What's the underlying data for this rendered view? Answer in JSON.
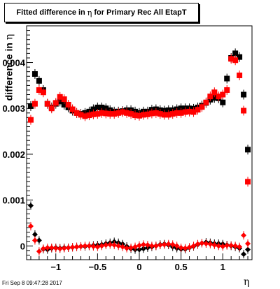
{
  "title": {
    "prefix": "Fitted difference in",
    "symbol": "η",
    "suffix": "for Primary Rec All EtapT"
  },
  "timestamp": "Fri Sep  8 09:47:28 2017",
  "colors": {
    "black": "#000000",
    "red": "#ff0000",
    "axis": "#000000"
  },
  "chart_data": {
    "type": "scatter",
    "title": "Fitted difference in η for Primary Rec All EtapT",
    "xlabel": "η",
    "ylabel": "difference in η",
    "xlim": [
      -1.35,
      1.35
    ],
    "ylim": [
      -0.0003,
      0.0048
    ],
    "x_ticks": [
      -1,
      -0.5,
      0,
      0.5,
      1
    ],
    "x_tick_labels": [
      "−1",
      "−0.5",
      "0",
      "0.5",
      "1"
    ],
    "y_ticks": [
      0,
      0.001,
      0.002,
      0.003,
      0.004
    ],
    "y_tick_labels": [
      "0",
      "0.001",
      "0.002",
      "0.003",
      "0.004"
    ],
    "grid": false,
    "series": [
      {
        "color": "#000000",
        "marker": "square",
        "x": [
          -1.3,
          -1.25,
          -1.2,
          -1.15,
          -1.1,
          -1.05,
          -1.0,
          -0.95,
          -0.9,
          -0.85,
          -0.8,
          -0.75,
          -0.7,
          -0.65,
          -0.6,
          -0.55,
          -0.5,
          -0.45,
          -0.4,
          -0.35,
          -0.3,
          -0.25,
          -0.2,
          -0.15,
          -0.1,
          -0.05,
          0.0,
          0.05,
          0.1,
          0.15,
          0.2,
          0.25,
          0.3,
          0.35,
          0.4,
          0.45,
          0.5,
          0.55,
          0.6,
          0.65,
          0.7,
          0.75,
          0.8,
          0.85,
          0.9,
          0.95,
          1.0,
          1.05,
          1.1,
          1.15,
          1.2,
          1.25,
          1.3
        ],
        "y": [
          0.00305,
          0.00375,
          0.0036,
          0.0034,
          0.0031,
          0.00302,
          0.0031,
          0.00315,
          0.00308,
          0.00302,
          0.00295,
          0.0029,
          0.00288,
          0.0029,
          0.00293,
          0.00298,
          0.00302,
          0.00302,
          0.003,
          0.00296,
          0.00293,
          0.00293,
          0.00294,
          0.00296,
          0.00296,
          0.00293,
          0.0029,
          0.00293,
          0.00293,
          0.00297,
          0.00298,
          0.00296,
          0.00295,
          0.00296,
          0.00296,
          0.00298,
          0.003,
          0.003,
          0.003,
          0.00299,
          0.00302,
          0.00306,
          0.00312,
          0.00319,
          0.00323,
          0.00322,
          0.00313,
          0.00365,
          0.0041,
          0.0042,
          0.00412,
          0.0033,
          0.0021
        ]
      },
      {
        "color": "#ff0000",
        "marker": "square",
        "x": [
          -1.3,
          -1.25,
          -1.2,
          -1.15,
          -1.1,
          -1.05,
          -1.0,
          -0.95,
          -0.9,
          -0.85,
          -0.8,
          -0.75,
          -0.7,
          -0.65,
          -0.6,
          -0.55,
          -0.5,
          -0.45,
          -0.4,
          -0.35,
          -0.3,
          -0.25,
          -0.2,
          -0.15,
          -0.1,
          -0.05,
          0.0,
          0.05,
          0.1,
          0.15,
          0.2,
          0.25,
          0.3,
          0.35,
          0.4,
          0.45,
          0.5,
          0.55,
          0.6,
          0.65,
          0.7,
          0.75,
          0.8,
          0.85,
          0.9,
          0.95,
          1.0,
          1.05,
          1.1,
          1.15,
          1.2,
          1.25,
          1.3
        ],
        "y": [
          0.00275,
          0.0031,
          0.0034,
          0.00335,
          0.0031,
          0.003,
          0.00312,
          0.00325,
          0.0032,
          0.00308,
          0.00298,
          0.0029,
          0.00286,
          0.00283,
          0.00285,
          0.00287,
          0.00288,
          0.0029,
          0.00289,
          0.00288,
          0.00288,
          0.0029,
          0.00292,
          0.0029,
          0.00288,
          0.00285,
          0.00284,
          0.00286,
          0.00287,
          0.00289,
          0.0029,
          0.00288,
          0.00286,
          0.00286,
          0.00288,
          0.0029,
          0.0029,
          0.00292,
          0.00293,
          0.00292,
          0.00297,
          0.00303,
          0.00313,
          0.00326,
          0.00335,
          0.00326,
          0.0033,
          0.0034,
          0.00408,
          0.00405,
          0.00372,
          0.00295,
          0.0014
        ]
      },
      {
        "color": "#000000",
        "marker": "diamond",
        "x": [
          -1.3,
          -1.25,
          -1.2,
          -1.15,
          -1.1,
          -1.05,
          -1.0,
          -0.95,
          -0.9,
          -0.85,
          -0.8,
          -0.75,
          -0.7,
          -0.65,
          -0.6,
          -0.55,
          -0.5,
          -0.45,
          -0.4,
          -0.35,
          -0.3,
          -0.25,
          -0.2,
          -0.15,
          -0.1,
          -0.05,
          0.0,
          0.05,
          0.1,
          0.15,
          0.2,
          0.25,
          0.3,
          0.35,
          0.4,
          0.45,
          0.5,
          0.55,
          0.6,
          0.65,
          0.7,
          0.75,
          0.8,
          0.85,
          0.9,
          0.95,
          1.0,
          1.05,
          1.1,
          1.15,
          1.2,
          1.25,
          1.3
        ],
        "y": [
          0.00088,
          0.00025,
          0.00012,
          -7e-05,
          -8e-05,
          -5e-05,
          -4e-05,
          -5e-05,
          -4e-05,
          -4e-05,
          -3e-05,
          -2e-05,
          -1e-05,
          -1e-05,
          0.0,
          1e-05,
          2e-05,
          3e-05,
          5e-05,
          7e-05,
          9e-05,
          7e-05,
          4e-05,
          -1e-05,
          -6e-05,
          -8e-05,
          -8e-05,
          -6e-05,
          -4e-05,
          -2e-05,
          0.0,
          3e-05,
          4e-05,
          2e-05,
          -2e-05,
          -5e-05,
          -7e-05,
          -7e-05,
          -4e-05,
          -1e-05,
          3e-05,
          6e-05,
          8e-05,
          7e-05,
          5e-05,
          5e-05,
          4e-05,
          2e-05,
          0.0,
          -2e-05,
          -5e-05,
          -0.00018,
          -8e-05
        ]
      },
      {
        "color": "#ff0000",
        "marker": "diamond",
        "x": [
          -1.3,
          -1.25,
          -1.2,
          -1.15,
          -1.1,
          -1.05,
          -1.0,
          -0.95,
          -0.9,
          -0.85,
          -0.8,
          -0.75,
          -0.7,
          -0.65,
          -0.6,
          -0.55,
          -0.5,
          -0.45,
          -0.4,
          -0.35,
          -0.3,
          -0.25,
          -0.2,
          -0.15,
          -0.1,
          -0.05,
          0.0,
          0.05,
          0.1,
          0.15,
          0.2,
          0.25,
          0.3,
          0.35,
          0.4,
          0.45,
          0.5,
          0.55,
          0.6,
          0.65,
          0.7,
          0.75,
          0.8,
          0.85,
          0.9,
          0.95,
          1.0,
          1.05,
          1.1,
          1.15,
          1.2,
          1.25,
          1.3
        ],
        "y": [
          0.00043,
          0.00012,
          -0.00012,
          -6e-05,
          -4e-05,
          -4e-05,
          -5e-05,
          -6e-05,
          -5e-05,
          -4e-05,
          -3e-05,
          -2e-05,
          -1e-05,
          0.0,
          0.0,
          -1e-05,
          -2e-05,
          0.0,
          2e-05,
          3e-05,
          2e-05,
          0.0,
          -2e-05,
          -5e-05,
          -4e-05,
          -2e-05,
          1e-05,
          3e-05,
          2e-05,
          0.0,
          0.0,
          2e-05,
          3e-05,
          4e-05,
          3e-05,
          0.0,
          -4e-05,
          -5e-05,
          -3e-05,
          0.0,
          4e-05,
          6e-05,
          5e-05,
          4e-05,
          2e-05,
          0.0,
          -1e-05,
          1e-05,
          1e-05,
          0.0,
          -2e-05,
          0.00023,
          5e-05
        ]
      }
    ]
  }
}
